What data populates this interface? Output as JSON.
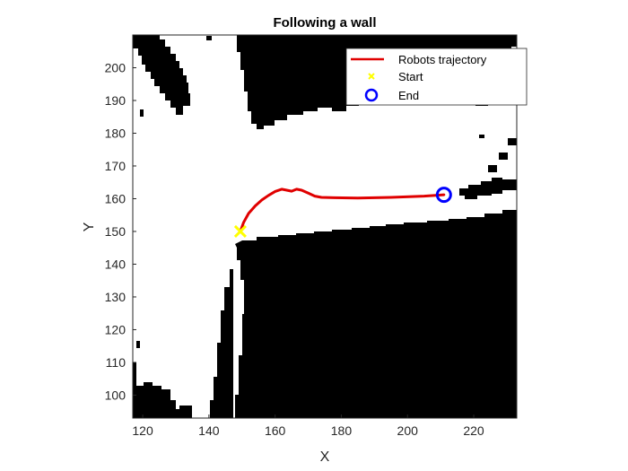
{
  "chart_data": {
    "type": "line",
    "title": "Following a wall",
    "xlabel": "X",
    "ylabel": "Y",
    "xlim": [
      117,
      233
    ],
    "ylim": [
      93,
      210
    ],
    "xticks": [
      120,
      140,
      160,
      180,
      200,
      220
    ],
    "yticks": [
      100,
      110,
      120,
      130,
      140,
      150,
      160,
      170,
      180,
      190,
      200
    ],
    "grid": false,
    "background": "occupancy map (black = occupied, white = free)",
    "legend_position": "top-right",
    "series": [
      {
        "name": "Robots trajectory",
        "color": "#e00000",
        "x": [
          149.5,
          150.5,
          152,
          154,
          156,
          158,
          160,
          162,
          163.5,
          165,
          166.5,
          168,
          170,
          172,
          174,
          178,
          185,
          195,
          205,
          211
        ],
        "y": [
          150.0,
          152.8,
          155.5,
          157.8,
          159.6,
          161.0,
          162.2,
          162.9,
          162.6,
          162.3,
          162.9,
          162.6,
          161.7,
          160.8,
          160.4,
          160.3,
          160.2,
          160.4,
          160.8,
          161.2
        ]
      },
      {
        "name": "Start",
        "color": "#ffff00",
        "marker": "x",
        "x": [
          149.5
        ],
        "y": [
          150.0
        ]
      },
      {
        "name": "End",
        "color": "#0000ff",
        "marker": "o",
        "x": [
          211
        ],
        "y": [
          161.2
        ]
      }
    ]
  }
}
